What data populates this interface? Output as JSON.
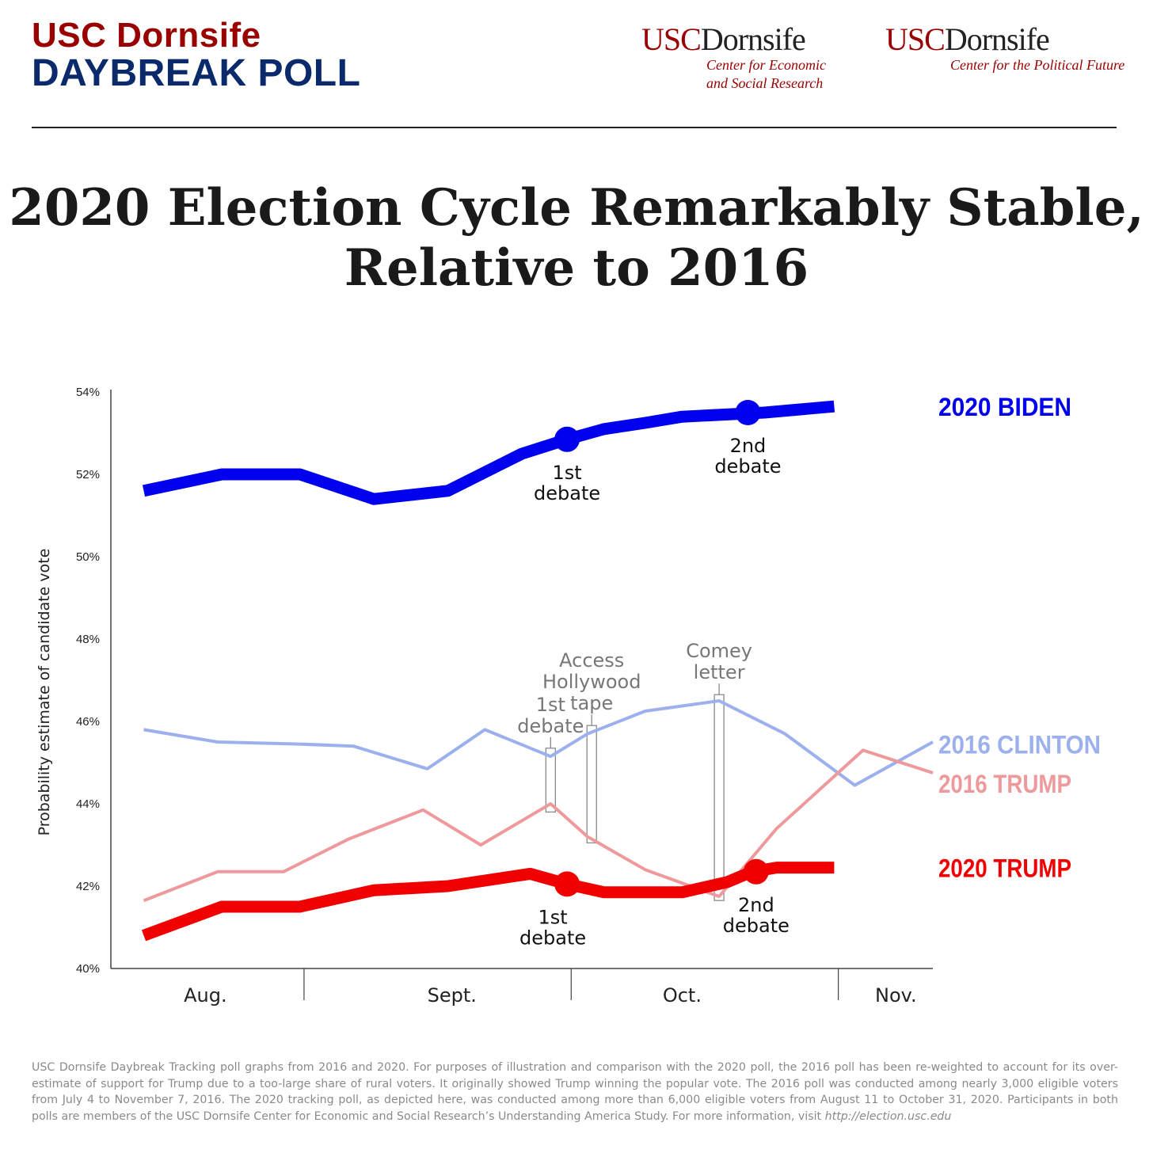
{
  "header": {
    "brand_line1": "USC Dornsife",
    "brand_line2": "DAYBREAK POLL",
    "logo1_mark_a": "USC",
    "logo1_mark_b": "Dornsife",
    "logo1_sub1": "Center for Economic",
    "logo1_sub2": "and Social Research",
    "logo2_mark_a": "USC",
    "logo2_mark_b": "Dornsife",
    "logo2_sub1": "Center for the Political Future"
  },
  "title_line1": "2020 Election Cycle Remarkably Stable,",
  "title_line2": "Relative to 2016",
  "colors": {
    "biden2020": "#0000ee",
    "trump2020": "#f00000",
    "clinton2016": "#9db0ee",
    "trump2016": "#ee9a9c",
    "annotation": "#777777",
    "axis": "#444444"
  },
  "chart_data": {
    "type": "line",
    "title": "2020 Election Cycle Remarkably Stable, Relative to 2016",
    "ylabel": "Probability estimate of candidate vote",
    "xlabel": "",
    "ylim": [
      40,
      54
    ],
    "yticks": [
      "40%",
      "42%",
      "44%",
      "46%",
      "48%",
      "50%",
      "52%",
      "54%"
    ],
    "ytick_values": [
      40,
      42,
      44,
      46,
      48,
      50,
      52,
      54
    ],
    "xlim": [
      0,
      100
    ],
    "months": [
      {
        "label": "Aug.",
        "center": 11.5
      },
      {
        "label": "Sept.",
        "center": 41.5
      },
      {
        "label": "Oct.",
        "center": 69.5
      },
      {
        "label": "Nov.",
        "center": 95.5
      }
    ],
    "month_dividers": [
      23.5,
      56,
      88.5
    ],
    "series": [
      {
        "name": "2020 BIDEN",
        "key": "biden2020",
        "width": 15,
        "x": [
          4,
          13.5,
          23,
          32,
          41,
          50,
          55.5,
          60,
          65,
          69.5,
          79.5,
          88
        ],
        "y": [
          51.6,
          52.0,
          52.0,
          51.4,
          51.6,
          52.5,
          52.85,
          53.1,
          53.25,
          53.4,
          53.5,
          53.65
        ],
        "markers": [
          {
            "x": 55.5,
            "y": 52.85,
            "label": [
              "1st",
              "debate"
            ]
          },
          {
            "x": 77.5,
            "y": 53.5,
            "label": [
              "2nd",
              "debate"
            ]
          }
        ]
      },
      {
        "name": "2020 TRUMP",
        "key": "trump2020",
        "width": 15,
        "x": [
          4,
          13.5,
          23,
          32,
          41,
          51,
          55.5,
          60,
          69.5,
          75,
          78,
          81,
          88
        ],
        "y": [
          40.8,
          41.5,
          41.5,
          41.9,
          42.0,
          42.3,
          42.05,
          41.85,
          41.85,
          42.1,
          42.35,
          42.45,
          42.45
        ],
        "markers": [
          {
            "x": 55.5,
            "y": 42.05,
            "label": [
              "1st",
              "debate"
            ]
          },
          {
            "x": 78.5,
            "y": 42.35,
            "label": [
              "2nd",
              "debate"
            ]
          }
        ]
      },
      {
        "name": "2016 CLINTON",
        "key": "clinton2016",
        "width": 4,
        "x": [
          4,
          13,
          23,
          29.5,
          38.5,
          45.5,
          53.5,
          58,
          65,
          74,
          82,
          90.5,
          100
        ],
        "y": [
          45.8,
          45.5,
          45.45,
          45.4,
          44.85,
          45.8,
          45.15,
          45.7,
          46.25,
          46.5,
          45.7,
          44.45,
          45.5
        ]
      },
      {
        "name": "2016 TRUMP",
        "key": "trump2016",
        "width": 4,
        "x": [
          4,
          13,
          21,
          29,
          38,
          45,
          53.5,
          58,
          65,
          74,
          81,
          91.5,
          100
        ],
        "y": [
          41.65,
          42.35,
          42.35,
          43.15,
          43.85,
          43.0,
          44.0,
          43.2,
          42.4,
          41.75,
          43.4,
          45.3,
          44.75
        ]
      }
    ],
    "events_2016": [
      {
        "label": [
          "1st",
          "debate"
        ],
        "x": 53.5,
        "y_from": 43.8,
        "y_to": 45.35
      },
      {
        "label": [
          "Access",
          "Hollywood",
          "tape"
        ],
        "x": 58.5,
        "y_from": 43.05,
        "y_to": 45.9
      },
      {
        "label": [
          "Comey",
          "letter"
        ],
        "x": 74,
        "y_from": 41.65,
        "y_to": 46.65
      }
    ]
  },
  "footnote": {
    "text": "USC Dornsife Daybreak Tracking poll graphs from 2016 and 2020. For purposes of illustration and comparison with the 2020 poll, the 2016 poll has been re-weighted to account for its over-estimate of support for Trump due to a too-large share of rural voters. It originally showed Trump winning the popular vote. The 2016 poll was conducted among nearly 3,000 eligible voters from July 4 to November 7, 2016. The 2020 tracking poll, as depicted here, was conducted among more than 6,000 eligible voters from August 11 to October 31, 2020. Participants in both polls are members of the USC Dornsife Center for Economic and Social Research’s Understanding America Study. For more information, visit",
    "url": "http://election.usc.edu"
  }
}
